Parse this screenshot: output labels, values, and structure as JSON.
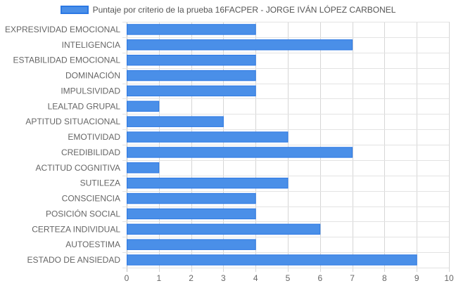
{
  "chart_data": {
    "type": "bar",
    "orientation": "horizontal",
    "categories": [
      "EXPRESIVIDAD EMOCIONAL",
      "INTELIGENCIA",
      "ESTABILIDAD EMOCIONAL",
      "DOMINACIÓN",
      "IMPULSIVIDAD",
      "LEALTAD GRUPAL",
      "APTITUD SITUACIONAL",
      "EMOTIVIDAD",
      "CREDIBILIDAD",
      "ACTITUD COGNITIVA",
      "SUTILEZA",
      "CONSCIENCIA",
      "POSICIÓN SOCIAL",
      "CERTEZA INDIVIDUAL",
      "AUTOESTIMA",
      "ESTADO DE ANSIEDAD"
    ],
    "series": [
      {
        "name": "Puntaje por criterio de la prueba 16FACPER - JORGE IVÁN LÓPEZ CARBONEL",
        "values": [
          4,
          7,
          4,
          4,
          4,
          1,
          3,
          5,
          7,
          1,
          5,
          4,
          4,
          6,
          4,
          9
        ],
        "color": "#4a8fe8",
        "border_color": "#2b78e4"
      }
    ],
    "xlim": [
      0,
      10
    ],
    "x_ticks": [
      "0",
      "1",
      "2",
      "3",
      "4",
      "5",
      "6",
      "7",
      "8",
      "9",
      "10"
    ],
    "grid": true,
    "legend_position": "top-center"
  }
}
